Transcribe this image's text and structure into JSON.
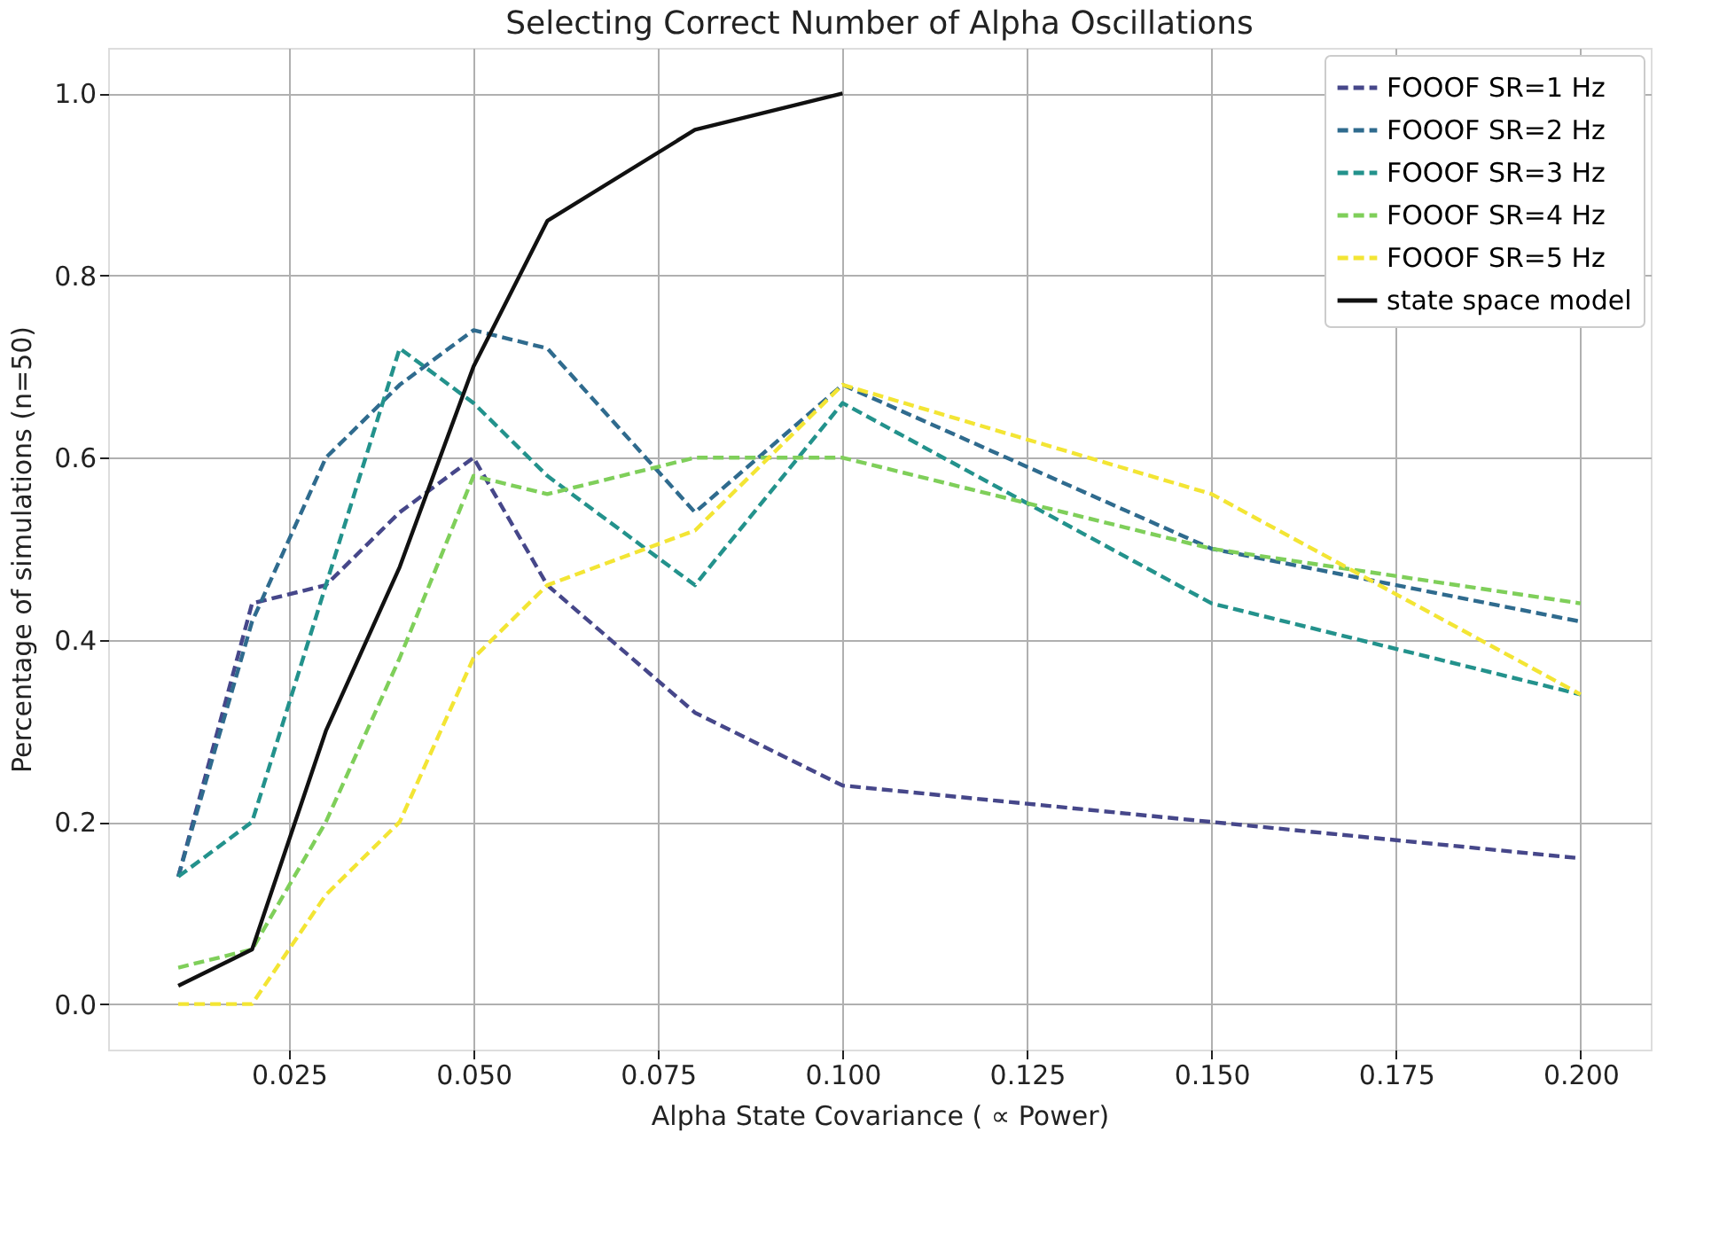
{
  "chart_data": {
    "type": "line",
    "title": "Selecting Correct Number of Alpha Oscillations",
    "xlabel": "Alpha State Covariance ( ∝ Power)",
    "ylabel": "Percentage of simulations (n=50)",
    "x": [
      0.01,
      0.02,
      0.03,
      0.04,
      0.05,
      0.06,
      0.08,
      0.1,
      0.15,
      0.2
    ],
    "series": [
      {
        "name": "FOOOF SR=1 Hz",
        "color": "#46478a",
        "line_style": "dashed",
        "values": [
          0.14,
          0.44,
          0.46,
          0.54,
          0.6,
          0.46,
          0.32,
          0.24,
          0.2,
          0.16
        ]
      },
      {
        "name": "FOOOF SR=2 Hz",
        "color": "#2f6b8e",
        "line_style": "dashed",
        "values": [
          0.14,
          0.42,
          0.6,
          0.68,
          0.74,
          0.72,
          0.54,
          0.68,
          0.5,
          0.42
        ]
      },
      {
        "name": "FOOOF SR=3 Hz",
        "color": "#23928c",
        "line_style": "dashed",
        "values": [
          0.14,
          0.2,
          0.46,
          0.72,
          0.66,
          0.58,
          0.46,
          0.66,
          0.44,
          0.34
        ]
      },
      {
        "name": "FOOOF SR=4 Hz",
        "color": "#7fcf5a",
        "line_style": "dashed",
        "values": [
          0.04,
          0.06,
          0.2,
          0.38,
          0.58,
          0.56,
          0.6,
          0.6,
          0.5,
          0.44
        ]
      },
      {
        "name": "FOOOF SR=5 Hz",
        "color": "#f3e534",
        "line_style": "dashed",
        "values": [
          0.0,
          0.0,
          0.12,
          0.2,
          0.38,
          0.46,
          0.52,
          0.68,
          0.56,
          0.34
        ]
      },
      {
        "name": "state space model",
        "color": "#111111",
        "line_style": "solid",
        "values": [
          0.02,
          0.06,
          0.3,
          0.48,
          0.7,
          0.86,
          0.96,
          1.0,
          null,
          null
        ]
      }
    ],
    "xlim": [
      0.0005,
      0.2095
    ],
    "ylim": [
      -0.05,
      1.05
    ],
    "xticks": [
      0.025,
      {
        "value": 0.05,
        "label": "0.050"
      },
      0.075,
      {
        "value": 0.1,
        "label": "0.100"
      },
      0.125,
      {
        "value": 0.15,
        "label": "0.150"
      },
      0.175,
      {
        "value": 0.2,
        "label": "0.200"
      }
    ],
    "yticks": [
      {
        "value": 0,
        "label": "0.0"
      },
      {
        "value": 0.2,
        "label": "0.2"
      },
      {
        "value": 0.4,
        "label": "0.4"
      },
      {
        "value": 0.6,
        "label": "0.6"
      },
      {
        "value": 0.8,
        "label": "0.8"
      },
      {
        "value": 1,
        "label": "1.0"
      }
    ],
    "grid": true,
    "legend": "top right",
    "marker": "none"
  }
}
